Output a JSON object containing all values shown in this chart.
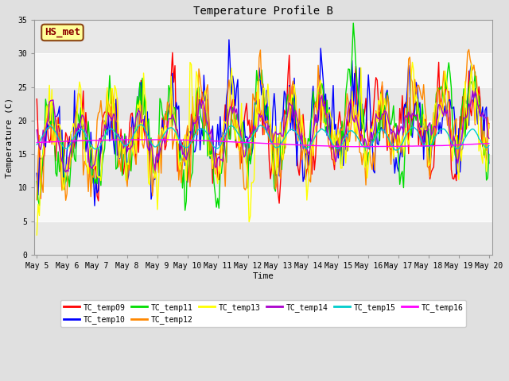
{
  "title": "Temperature Profile B",
  "xlabel": "Time",
  "ylabel": "Temperature (C)",
  "ylim": [
    0,
    35
  ],
  "xlim_days": [
    4.92,
    20.12
  ],
  "annotation_text": "HS_met",
  "xtick_labels": [
    "May 5",
    "May 6",
    "May 7",
    "May 8",
    "May 9",
    "May 10",
    "May 11",
    "May 12",
    "May 13",
    "May 14",
    "May 15",
    "May 16",
    "May 17",
    "May 18",
    "May 19",
    "May 20"
  ],
  "xtick_days": [
    5,
    6,
    7,
    8,
    9,
    10,
    11,
    12,
    13,
    14,
    15,
    16,
    17,
    18,
    19,
    20
  ],
  "series_names": [
    "TC_temp09",
    "TC_temp10",
    "TC_temp11",
    "TC_temp12",
    "TC_temp13",
    "TC_temp14",
    "TC_temp15",
    "TC_temp16"
  ],
  "series_colors": [
    "#ff0000",
    "#0000ff",
    "#00dd00",
    "#ff8800",
    "#ffff00",
    "#aa00cc",
    "#00cccc",
    "#ff00ff"
  ],
  "bg_gray_color": "#e8e8e8",
  "bg_white_color": "#f8f8f8",
  "fig_bg_color": "#e0e0e0"
}
